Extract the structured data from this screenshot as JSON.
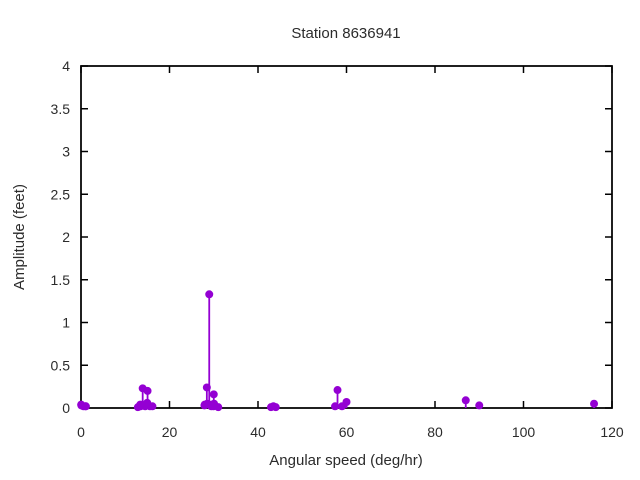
{
  "chart_data": {
    "type": "stem",
    "title": "Station 8636941",
    "xlabel": "Angular speed (deg/hr)",
    "ylabel": "Amplitude (feet)",
    "xlim": [
      0,
      120
    ],
    "ylim": [
      0,
      4
    ],
    "xticks": [
      0,
      20,
      40,
      60,
      80,
      100,
      120
    ],
    "xtick_labels": [
      "0",
      "20",
      "40",
      "60",
      "80",
      "100",
      "120"
    ],
    "yticks": [
      0,
      0.5,
      1,
      1.5,
      2,
      2.5,
      3,
      3.5,
      4
    ],
    "ytick_labels": [
      "0",
      "0.5",
      "1",
      "1.5",
      "2",
      "2.5",
      "3",
      "3.5",
      "4"
    ],
    "grid": false,
    "legend": "none",
    "marker": "filled-circle",
    "series_color": "#9400d3",
    "axis_color": "#000000",
    "text_color": "#2b2b2b",
    "background_color": "#ffffff",
    "points": [
      [
        0.04,
        0.04
      ],
      [
        0.08,
        0.03
      ],
      [
        0.54,
        0.02
      ],
      [
        1.02,
        0.02
      ],
      [
        1.1,
        0.02
      ],
      [
        12.85,
        0.01
      ],
      [
        13.4,
        0.04
      ],
      [
        13.47,
        0.02
      ],
      [
        13.94,
        0.23
      ],
      [
        14.5,
        0.02
      ],
      [
        14.96,
        0.06
      ],
      [
        15.04,
        0.2
      ],
      [
        15.59,
        0.02
      ],
      [
        16.14,
        0.02
      ],
      [
        27.9,
        0.03
      ],
      [
        27.97,
        0.04
      ],
      [
        28.44,
        0.24
      ],
      [
        28.51,
        0.05
      ],
      [
        28.98,
        1.33
      ],
      [
        29.46,
        0.02
      ],
      [
        29.53,
        0.04
      ],
      [
        29.96,
        0.02
      ],
      [
        30.0,
        0.16
      ],
      [
        30.08,
        0.05
      ],
      [
        31.02,
        0.01
      ],
      [
        42.93,
        0.01
      ],
      [
        43.48,
        0.02
      ],
      [
        44.02,
        0.01
      ],
      [
        57.42,
        0.02
      ],
      [
        57.97,
        0.21
      ],
      [
        58.98,
        0.02
      ],
      [
        60.0,
        0.07
      ],
      [
        86.95,
        0.09
      ],
      [
        90.0,
        0.03
      ],
      [
        115.94,
        0.05
      ]
    ]
  }
}
